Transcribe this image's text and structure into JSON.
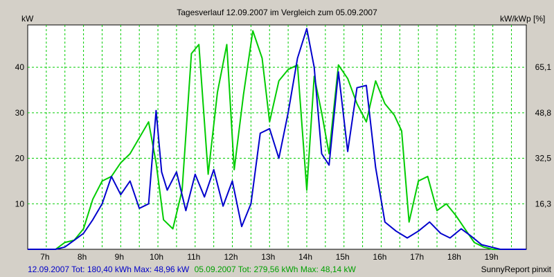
{
  "chart_data": {
    "type": "line",
    "title": "Tagesverlauf 12.09.2007 im Vergleich zum 05.09.2007",
    "ylabel_left": "kW",
    "ylabel_right": "kW/kWp [%]",
    "x_tick_labels": [
      "7h",
      "8h",
      "9h",
      "10h",
      "11h",
      "12h",
      "13h",
      "14h",
      "15h",
      "16h",
      "17h",
      "18h",
      "19h"
    ],
    "y_ticks_left": [
      10,
      20,
      30,
      40
    ],
    "y_ticks_right": [
      "16,3",
      "32,5",
      "48,8",
      "65,1"
    ],
    "ylim": [
      0,
      49.3
    ],
    "xlim": [
      6.5,
      19.9
    ],
    "grid": true,
    "series": [
      {
        "name": "12.09.2007",
        "color": "#0000cc",
        "x": [
          6.5,
          7.25,
          7.5,
          7.75,
          8.0,
          8.25,
          8.5,
          8.75,
          9.0,
          9.25,
          9.5,
          9.75,
          9.95,
          10.1,
          10.25,
          10.5,
          10.75,
          11.0,
          11.25,
          11.5,
          11.75,
          12.0,
          12.25,
          12.5,
          12.75,
          13.0,
          13.25,
          13.5,
          13.75,
          14.0,
          14.2,
          14.4,
          14.6,
          14.85,
          15.1,
          15.35,
          15.6,
          15.85,
          16.1,
          16.4,
          16.7,
          17.0,
          17.3,
          17.6,
          17.85,
          18.15,
          18.4,
          18.7,
          18.95,
          19.2,
          19.5,
          19.9
        ],
        "y": [
          0,
          0,
          0.5,
          2,
          3.5,
          6.5,
          10,
          16,
          12,
          15,
          9,
          10,
          30.5,
          17,
          13,
          17,
          8.5,
          16.5,
          11.5,
          17.5,
          9.5,
          15,
          5,
          10,
          25.5,
          26.5,
          20,
          30,
          42,
          48.5,
          40,
          21,
          18.5,
          39,
          21.5,
          35.5,
          36,
          18,
          6,
          4,
          2.5,
          4,
          6,
          3.5,
          2.5,
          4.5,
          3,
          1,
          0.5,
          0,
          0,
          0
        ]
      },
      {
        "name": "05.09.2007",
        "color": "#00cc00",
        "x": [
          6.5,
          7.25,
          7.5,
          7.75,
          8.0,
          8.25,
          8.5,
          8.75,
          9.0,
          9.25,
          9.5,
          9.75,
          9.95,
          10.15,
          10.4,
          10.65,
          10.9,
          11.1,
          11.35,
          11.6,
          11.85,
          12.05,
          12.3,
          12.55,
          12.8,
          13.0,
          13.25,
          13.5,
          13.75,
          14.0,
          14.2,
          14.4,
          14.6,
          14.85,
          15.1,
          15.35,
          15.6,
          15.85,
          16.1,
          16.35,
          16.55,
          16.75,
          17.0,
          17.25,
          17.5,
          17.75,
          18.0,
          18.25,
          18.5,
          18.75,
          19.0,
          19.25,
          19.5,
          19.9
        ],
        "y": [
          0,
          0,
          1.5,
          2,
          4.5,
          11,
          15,
          16,
          19,
          21,
          24.5,
          28,
          19,
          6.5,
          4.5,
          13,
          43,
          45,
          16.5,
          34.5,
          45,
          17.5,
          34,
          48,
          42,
          28,
          37,
          39.5,
          40.5,
          13,
          38,
          30,
          21,
          40.5,
          37.5,
          32,
          28,
          37,
          32,
          29.5,
          26,
          6,
          15,
          16,
          8.5,
          10,
          7.5,
          4.5,
          1.5,
          0.5,
          0,
          0,
          0,
          0
        ]
      }
    ],
    "legend_summary": [
      {
        "text": "12.09.2007 Tot: 180,40 kWh Max: 48,96 kW",
        "color": "#0000c8"
      },
      {
        "text": "05.09.2007 Tot: 279,56 kWh Max: 48,14 kW",
        "color": "#00a000"
      }
    ],
    "credit": "SunnyReport pinxit"
  }
}
